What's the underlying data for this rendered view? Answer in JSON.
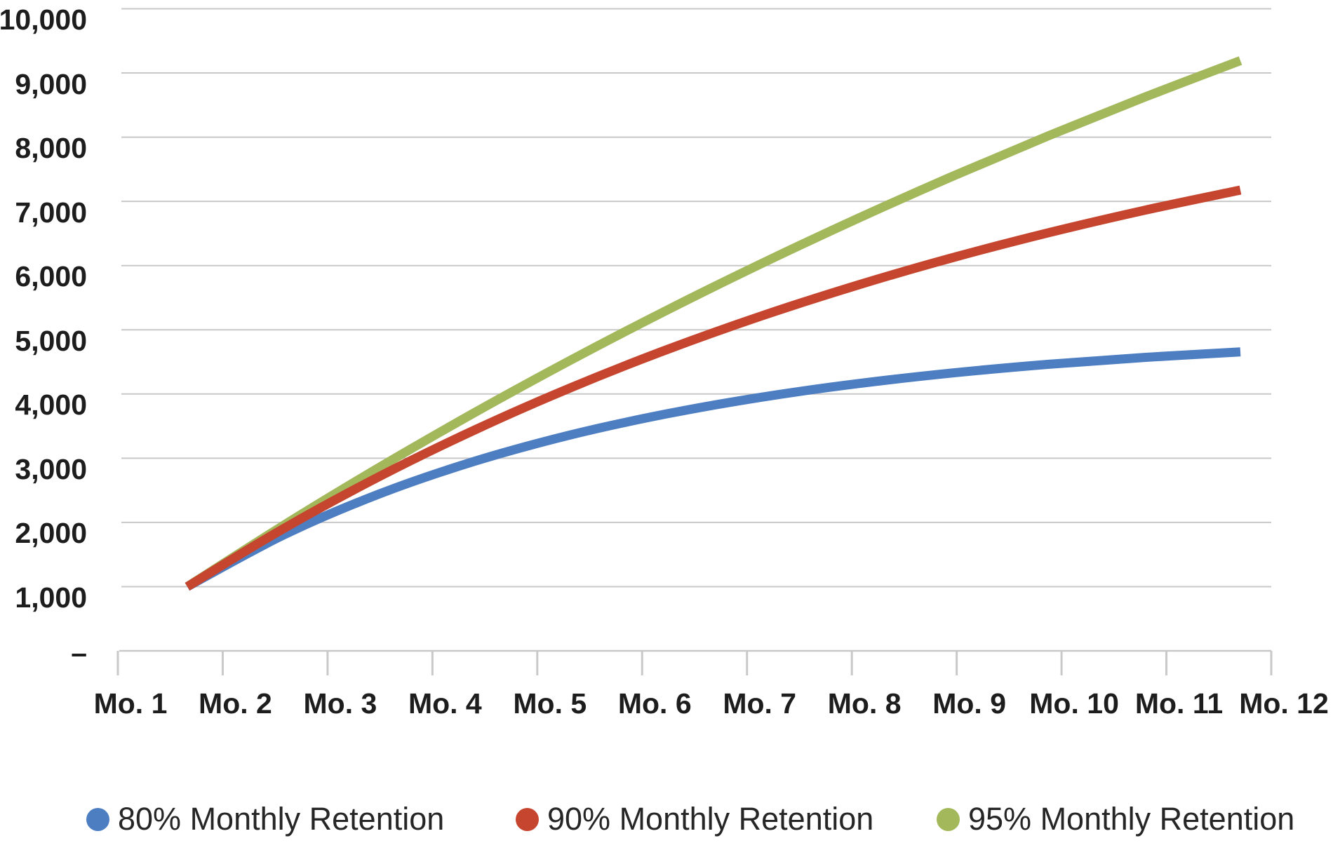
{
  "chart_data": {
    "type": "line",
    "title": "",
    "categories": [
      "Mo. 1",
      "Mo. 2",
      "Mo. 3",
      "Mo. 4",
      "Mo. 5",
      "Mo. 6",
      "Mo. 7",
      "Mo. 8",
      "Mo. 9",
      "Mo. 10",
      "Mo. 11",
      "Mo. 12"
    ],
    "series": [
      {
        "name": "80% Monthly Retention",
        "color": "#4D7EC2",
        "values": [
          1000,
          1800,
          2440,
          2952,
          3362,
          3689,
          3951,
          4161,
          4329,
          4463,
          4570,
          4656
        ]
      },
      {
        "name": "90% Monthly Retention",
        "color": "#C5452F",
        "values": [
          1000,
          1900,
          2710,
          3439,
          4095,
          4686,
          5217,
          5695,
          6126,
          6513,
          6862,
          7176
        ]
      },
      {
        "name": "95% Monthly Retention",
        "color": "#A2B85B",
        "values": [
          1000,
          1950,
          2852,
          3710,
          4524,
          5298,
          6033,
          6732,
          7395,
          8025,
          8624,
          9193
        ]
      }
    ],
    "draw_order": [
      2,
      0,
      1
    ],
    "y_axis": {
      "min": 0,
      "max": 10000,
      "step": 1000,
      "zero_label": "–",
      "tick_labels": [
        "–",
        "1,000",
        "2,000",
        "3,000",
        "4,000",
        "5,000",
        "6,000",
        "7,000",
        "8,000",
        "9,000",
        "10,000"
      ]
    },
    "x_axis": {
      "tick_count": 12
    },
    "grid": true,
    "legend_position": "bottom",
    "colors": {
      "grid": "#c8c8c8",
      "axis_line": "#c8c8c8",
      "tick": "#c9c9c9",
      "axis_text": "#1d1d1d",
      "legend_text": "#262626",
      "background": "#ffffff"
    }
  }
}
